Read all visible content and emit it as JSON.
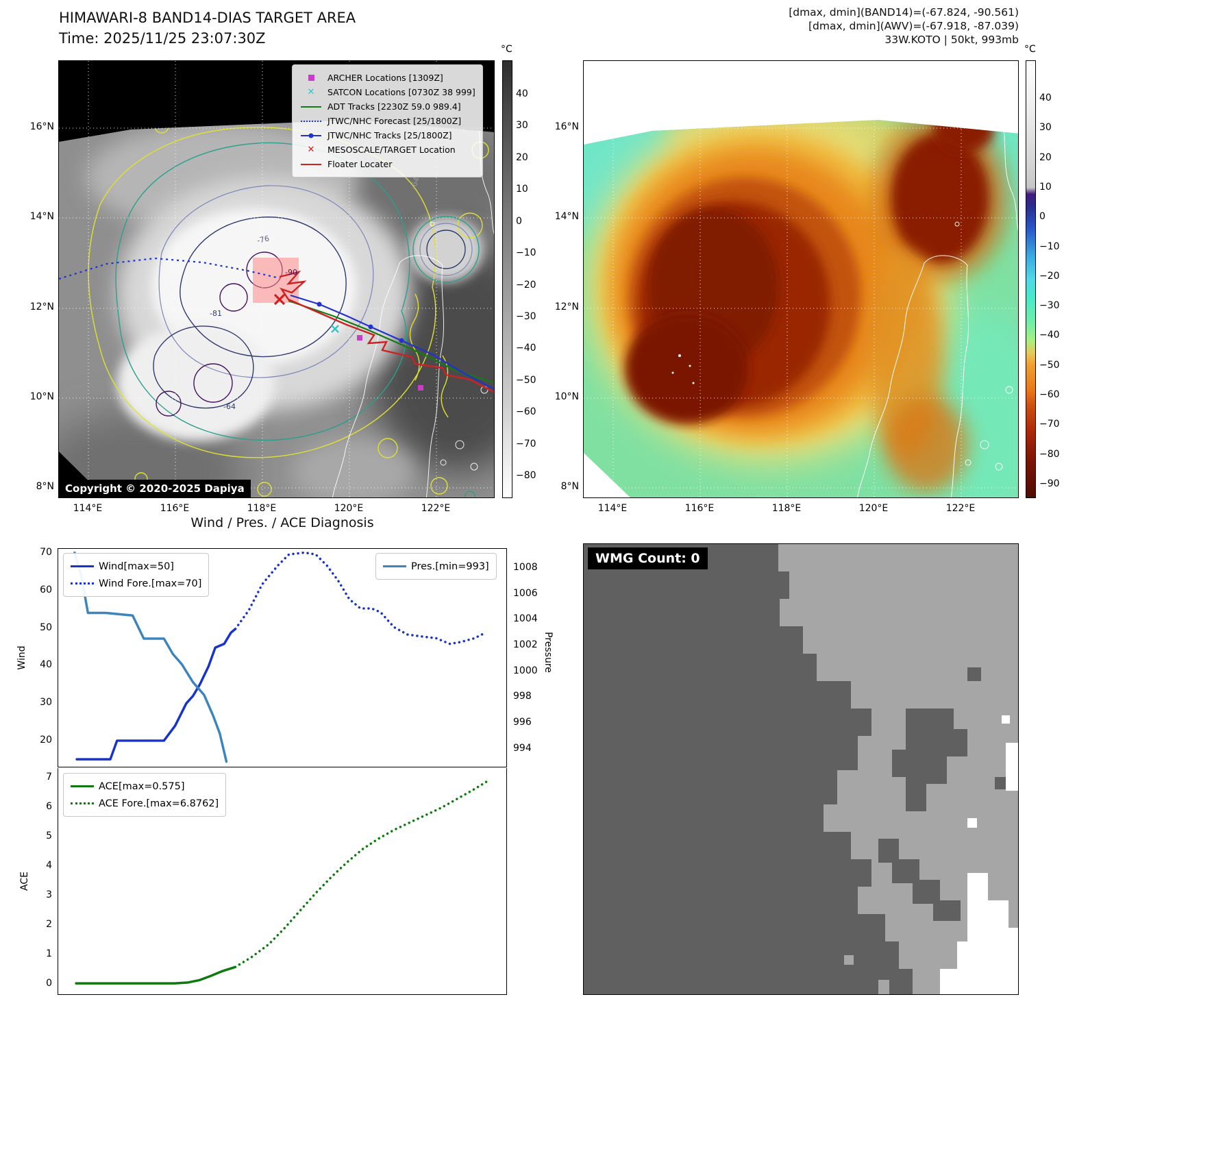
{
  "panel_band14": {
    "title": "HIMAWARI-8 BAND14-DIAS TARGET AREA",
    "subtitle": "Time: 2025/11/25 23:07:30Z",
    "copyright": "Copyright © 2020-2025 Dapiya",
    "legend": [
      {
        "label": "ARCHER Locations [1309Z]",
        "marker": "square",
        "color": "#c93ec9"
      },
      {
        "label": "SATCON Locations [0730Z 38 999]",
        "marker": "x",
        "color": "#35c4c4"
      },
      {
        "label": "ADT Tracks [2230Z 59.0 989.4]",
        "marker": "line",
        "color": "#157a15"
      },
      {
        "label": "JTWC/NHC Forecast [25/1800Z]",
        "marker": "dotted-line",
        "color": "#2233cc"
      },
      {
        "label": "JTWC/NHC Tracks [25/1800Z]",
        "marker": "line-dot",
        "color": "#2233cc"
      },
      {
        "label": "MESOSCALE/TARGET Location",
        "marker": "x",
        "color": "#cc2222"
      },
      {
        "label": "Floater Locater",
        "marker": "line",
        "color": "#cc2222"
      }
    ],
    "lat_ticks": [
      "16°N",
      "14°N",
      "12°N",
      "10°N",
      "8°N"
    ],
    "lon_ticks": [
      "114°E",
      "116°E",
      "118°E",
      "120°E",
      "122°E"
    ],
    "colorbar_unit": "°C",
    "colorbar_ticks": [
      "40",
      "30",
      "20",
      "10",
      "0",
      "−10",
      "−20",
      "−30",
      "−40",
      "−50",
      "−60",
      "−70",
      "−80"
    ],
    "contour_labels": [
      "-64",
      "-76",
      "-90",
      "-81",
      "-64"
    ]
  },
  "panel_awv": {
    "header_lines": [
      "[dmax, dmin](BAND14)=(-67.824, -90.561)",
      "[dmax, dmin](AWV)=(-67.918, -87.039)",
      "33W.KOTO | 50kt, 993mb"
    ],
    "lat_ticks": [
      "16°N",
      "14°N",
      "12°N",
      "10°N",
      "8°N"
    ],
    "lon_ticks": [
      "114°E",
      "116°E",
      "118°E",
      "120°E",
      "122°E"
    ],
    "colorbar_unit": "°C",
    "colorbar_ticks": [
      "40",
      "30",
      "20",
      "10",
      "0",
      "−10",
      "−20",
      "−30",
      "−40",
      "−50",
      "−60",
      "−70",
      "−80",
      "−90"
    ]
  },
  "panel_wmg": {
    "count_label": "WMG Count: 0"
  },
  "chart_data": [
    {
      "type": "line",
      "title": "Wind / Pres. / ACE Diagnosis",
      "ylabel_left": "Wind",
      "ylabel_right": "Pressure",
      "ylim_left": [
        13,
        71.5
      ],
      "yticks_left": [
        20,
        30,
        40,
        50,
        60,
        70
      ],
      "ylim_right": [
        992.6,
        1009.6
      ],
      "yticks_right": [
        994,
        996,
        998,
        1000,
        1002,
        1004,
        1006,
        1008
      ],
      "xlim": [
        0,
        1
      ],
      "grid": false,
      "legend_left": [
        "Wind[max=50]",
        "Wind Fore.[max=70]"
      ],
      "legend_right": [
        "Pres.[min=993]"
      ],
      "series": [
        {
          "name": "Wind[max=50]",
          "axis": "left",
          "style": "solid",
          "color": "#1733cc",
          "width": 3.5,
          "x": [
            0.04,
            0.115,
            0.13,
            0.235,
            0.26,
            0.285,
            0.3,
            0.315,
            0.335,
            0.35,
            0.37,
            0.385,
            0.395
          ],
          "y": [
            15,
            15,
            20,
            20,
            24,
            30,
            32,
            35,
            40,
            45,
            46,
            49,
            50
          ]
        },
        {
          "name": "Wind Fore.[max=70]",
          "axis": "left",
          "style": "dotted",
          "color": "#1733cc",
          "width": 3.5,
          "x": [
            0.395,
            0.425,
            0.455,
            0.49,
            0.515,
            0.55,
            0.575,
            0.6,
            0.625,
            0.65,
            0.675,
            0.7,
            0.72,
            0.75,
            0.78,
            0.81,
            0.845,
            0.875,
            0.9,
            0.93,
            0.955
          ],
          "y": [
            50,
            55,
            62,
            67,
            70,
            70.5,
            70,
            67,
            63,
            58,
            55.5,
            55.5,
            54.5,
            50.5,
            48.5,
            48,
            47.5,
            46,
            46.5,
            47.5,
            49
          ]
        },
        {
          "name": "Pres.[min=993]",
          "axis": "right",
          "style": "solid",
          "color": "#3c84bc",
          "width": 3.5,
          "x": [
            0.035,
            0.05,
            0.065,
            0.105,
            0.165,
            0.19,
            0.235,
            0.255,
            0.275,
            0.3,
            0.325,
            0.345,
            0.36,
            0.375
          ],
          "y": [
            1009.3,
            1007.5,
            1004.6,
            1004.6,
            1004.4,
            1002.6,
            1002.6,
            1001.4,
            1000.6,
            999.2,
            998.2,
            996.6,
            995.2,
            993.0
          ]
        }
      ]
    },
    {
      "type": "line",
      "ylabel_left": "ACE",
      "ylim_left": [
        -0.35,
        7.35
      ],
      "yticks_left": [
        0,
        1,
        2,
        3,
        4,
        5,
        6,
        7
      ],
      "xlim": [
        0,
        1
      ],
      "grid": false,
      "legend_left": [
        "ACE[max=0.575]",
        "ACE Fore.[max=6.8762]"
      ],
      "series": [
        {
          "name": "ACE[max=0.575]",
          "axis": "left",
          "style": "solid",
          "color": "#0e7a0e",
          "width": 3.5,
          "x": [
            0.04,
            0.26,
            0.29,
            0.315,
            0.34,
            0.365,
            0.395
          ],
          "y": [
            0.02,
            0.02,
            0.05,
            0.13,
            0.27,
            0.43,
            0.575
          ]
        },
        {
          "name": "ACE Fore.[max=6.8762]",
          "axis": "left",
          "style": "dotted",
          "color": "#0e7a0e",
          "width": 3.5,
          "x": [
            0.395,
            0.43,
            0.47,
            0.505,
            0.54,
            0.575,
            0.61,
            0.645,
            0.68,
            0.715,
            0.75,
            0.785,
            0.82,
            0.855,
            0.89,
            0.925,
            0.955
          ],
          "y": [
            0.575,
            0.9,
            1.35,
            1.9,
            2.5,
            3.1,
            3.65,
            4.15,
            4.6,
            4.95,
            5.25,
            5.5,
            5.75,
            6.0,
            6.3,
            6.6,
            6.88
          ]
        }
      ]
    }
  ]
}
